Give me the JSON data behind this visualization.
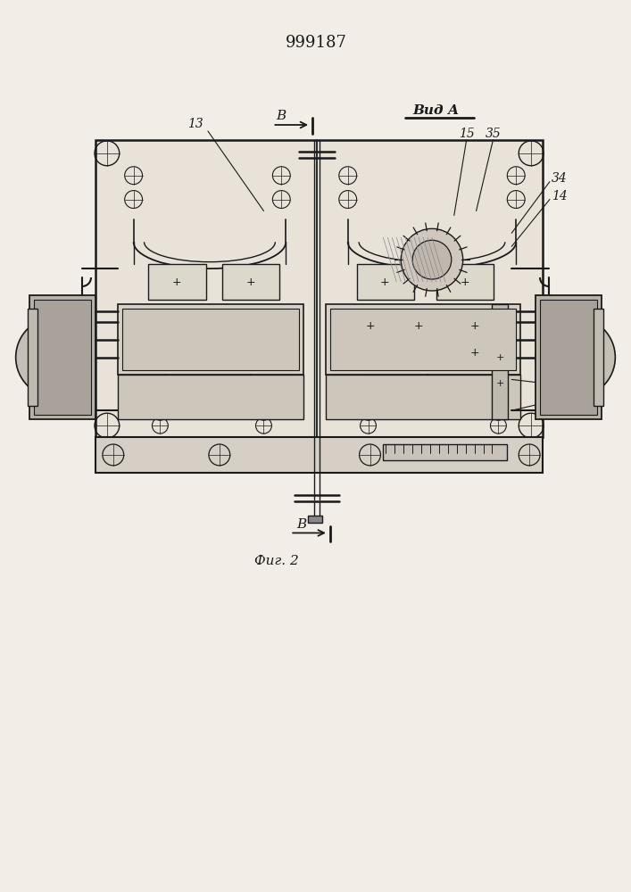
{
  "title": "999187",
  "bg_color": "#f2ede6",
  "line_color": "#1a1a1a",
  "title_fontsize": 13,
  "fig_caption": "Фиг. 2",
  "view_label": "Вид A"
}
